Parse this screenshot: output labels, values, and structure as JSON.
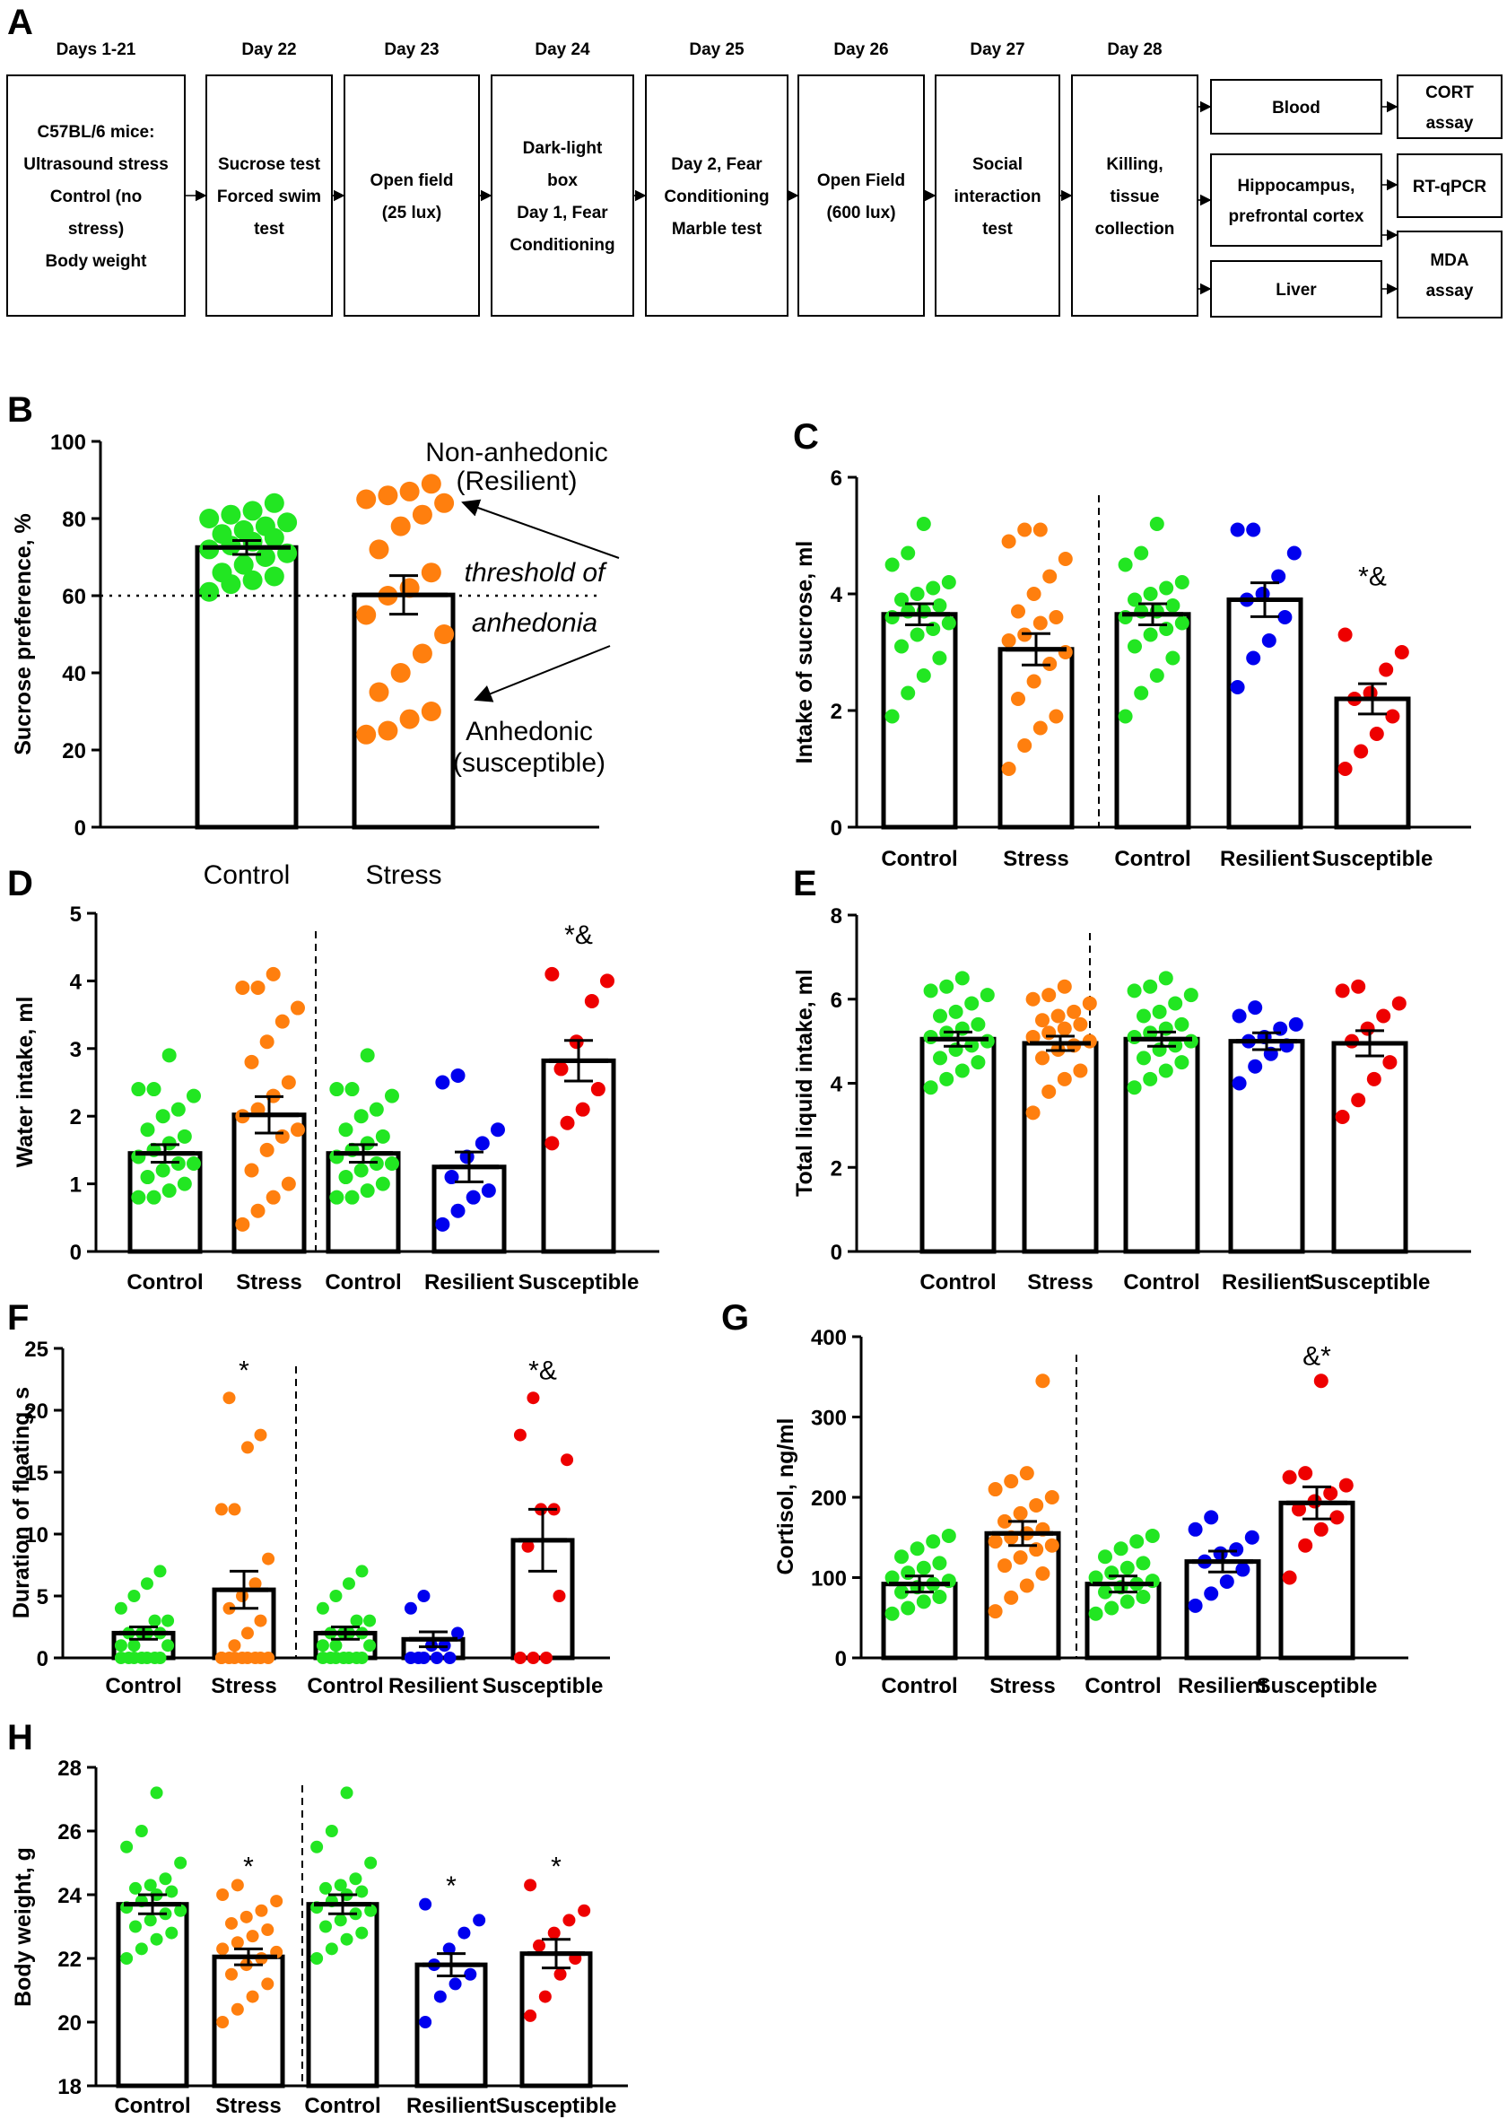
{
  "panel_labels": [
    "A",
    "B",
    "C",
    "D",
    "E",
    "F",
    "G",
    "H"
  ],
  "timeline": {
    "days": [
      "Days 1-21",
      "Day 22",
      "Day 23",
      "Day 24",
      "Day 25",
      "Day 26",
      "Day 27",
      "Day 28"
    ],
    "boxes": [
      [
        "C57BL/6 mice:",
        "Ultrasound stress",
        "Control (no",
        "stress)",
        "Body weight"
      ],
      [
        "Sucrose test",
        "Forced swim",
        "test"
      ],
      [
        "Open field",
        "(25 lux)"
      ],
      [
        "Dark-light",
        "box",
        "Day 1, Fear",
        "Conditioning"
      ],
      [
        "Day 2, Fear",
        "Conditioning",
        "Marble test"
      ],
      [
        "Open Field",
        "(600 lux)"
      ],
      [
        "Social",
        "interaction",
        "test"
      ],
      [
        "Killing,",
        "tissue",
        "collection"
      ]
    ],
    "tissues": [
      [
        "Blood"
      ],
      [
        "Hippocampus,",
        "prefrontal cortex"
      ],
      [
        "Liver"
      ]
    ],
    "assays": [
      [
        "CORT",
        "assay"
      ],
      [
        "RT-qPCR"
      ],
      [
        "MDA",
        "assay"
      ]
    ]
  },
  "colors": {
    "control": "#22e622",
    "stress": "#ff7f0e",
    "resilient": "#0000ee",
    "susceptible": "#ee0000",
    "anhedonic_text": "#b00000",
    "resilient_text": "#0000ff"
  },
  "chart_data": [
    {
      "id": "B",
      "type": "bar",
      "ylabel": "Sucrose preference, %",
      "ylim": [
        0,
        100
      ],
      "yticks": [
        0,
        20,
        40,
        60,
        80,
        100
      ],
      "categories": [
        "Control",
        "Stress"
      ],
      "means": [
        72.5,
        60.2
      ],
      "sems": [
        1.8,
        5.0
      ],
      "threshold": {
        "value": 60,
        "label_top": "threshold of",
        "label_bottom": "anhedonia"
      },
      "labels": {
        "non_anhedonic": [
          "Non-anhedonic",
          "(Resilient)"
        ],
        "anhedonic": [
          "Anhedonic",
          "(susceptible)"
        ]
      },
      "points": [
        [
          61,
          63,
          64,
          65,
          66,
          68,
          70,
          71,
          72,
          73,
          74,
          75,
          76,
          77,
          78,
          79,
          80,
          81,
          82,
          84
        ],
        [
          24,
          25,
          28,
          30,
          35,
          40,
          45,
          50,
          55,
          60,
          62,
          66,
          72,
          78,
          81,
          84,
          85,
          86,
          87,
          89
        ]
      ],
      "colors": [
        "control",
        "stress"
      ]
    },
    {
      "id": "C",
      "type": "bar",
      "ylabel": "Intake of sucrose, ml",
      "ylim": [
        0,
        6
      ],
      "yticks": [
        0,
        2,
        4,
        6
      ],
      "categories": [
        "Control",
        "Stress",
        "Control",
        "Resilient",
        "Susceptible"
      ],
      "means": [
        3.65,
        3.05,
        3.65,
        3.9,
        2.2
      ],
      "sems": [
        0.18,
        0.27,
        0.18,
        0.29,
        0.26
      ],
      "annotations": [
        {
          "category": 4,
          "text": "*&",
          "value": 4.15
        }
      ],
      "points": [
        [
          1.9,
          2.3,
          2.6,
          2.9,
          3.1,
          3.3,
          3.4,
          3.5,
          3.6,
          3.7,
          3.7,
          3.8,
          3.9,
          4.0,
          4.1,
          4.2,
          4.5,
          4.7,
          5.2
        ],
        [
          1.0,
          1.4,
          1.7,
          1.9,
          2.2,
          2.5,
          2.8,
          3.0,
          3.2,
          3.3,
          3.5,
          3.6,
          3.7,
          4.0,
          4.3,
          4.6,
          4.9,
          5.1,
          5.1
        ],
        [
          1.9,
          2.3,
          2.6,
          2.9,
          3.1,
          3.3,
          3.4,
          3.5,
          3.6,
          3.7,
          3.7,
          3.8,
          3.9,
          4.0,
          4.1,
          4.2,
          4.5,
          4.7,
          5.2
        ],
        [
          2.4,
          2.9,
          3.2,
          3.6,
          3.9,
          4.0,
          4.3,
          4.7,
          5.1,
          5.1
        ],
        [
          1.0,
          1.3,
          1.6,
          1.9,
          2.2,
          2.3,
          2.7,
          3.0,
          3.3
        ]
      ],
      "colors": [
        "control",
        "stress",
        "control",
        "resilient",
        "susceptible"
      ]
    },
    {
      "id": "D",
      "type": "bar",
      "ylabel": "Water intake, ml",
      "ylim": [
        0,
        5
      ],
      "yticks": [
        0,
        1,
        2,
        3,
        4,
        5
      ],
      "categories": [
        "Control",
        "Stress",
        "Control",
        "Resilient",
        "Susceptible"
      ],
      "means": [
        1.45,
        2.02,
        1.45,
        1.25,
        2.82
      ],
      "sems": [
        0.13,
        0.27,
        0.13,
        0.22,
        0.3
      ],
      "annotations": [
        {
          "category": 4,
          "text": "*&",
          "value": 4.55
        }
      ],
      "points": [
        [
          0.8,
          0.8,
          0.9,
          1.0,
          1.1,
          1.2,
          1.3,
          1.3,
          1.4,
          1.5,
          1.6,
          1.7,
          1.8,
          2.0,
          2.1,
          2.3,
          2.4,
          2.4,
          2.9
        ],
        [
          0.4,
          0.6,
          0.8,
          1.0,
          1.2,
          1.5,
          1.7,
          1.8,
          2.0,
          2.1,
          2.3,
          2.5,
          2.8,
          3.1,
          3.4,
          3.6,
          3.9,
          3.9,
          4.1
        ],
        [
          0.8,
          0.8,
          0.9,
          1.0,
          1.1,
          1.2,
          1.3,
          1.3,
          1.4,
          1.5,
          1.6,
          1.7,
          1.8,
          2.0,
          2.1,
          2.3,
          2.4,
          2.4,
          2.9
        ],
        [
          0.4,
          0.6,
          0.8,
          0.9,
          1.1,
          1.4,
          1.6,
          1.8,
          2.5,
          2.6
        ],
        [
          1.6,
          1.9,
          2.1,
          2.4,
          2.7,
          3.1,
          3.7,
          4.0,
          4.1
        ]
      ],
      "colors": [
        "control",
        "stress",
        "control",
        "resilient",
        "susceptible"
      ]
    },
    {
      "id": "E",
      "type": "bar",
      "ylabel": "Total liquid intake, ml",
      "ylim": [
        0,
        8
      ],
      "yticks": [
        0,
        2,
        4,
        6,
        8
      ],
      "categories": [
        "Control",
        "Stress",
        "Control",
        "Resilient",
        "Susceptible"
      ],
      "means": [
        5.05,
        4.95,
        5.05,
        5.0,
        4.95
      ],
      "sems": [
        0.17,
        0.17,
        0.17,
        0.2,
        0.3
      ],
      "annotations": [],
      "points": [
        [
          3.9,
          4.1,
          4.3,
          4.5,
          4.6,
          4.8,
          4.9,
          5.0,
          5.1,
          5.2,
          5.3,
          5.4,
          5.6,
          5.7,
          5.9,
          6.1,
          6.2,
          6.3,
          6.5
        ],
        [
          3.3,
          3.8,
          4.1,
          4.3,
          4.6,
          4.8,
          4.9,
          5.0,
          5.1,
          5.2,
          5.3,
          5.4,
          5.5,
          5.6,
          5.7,
          5.9,
          6.0,
          6.1,
          6.3
        ],
        [
          3.9,
          4.1,
          4.3,
          4.5,
          4.6,
          4.8,
          4.9,
          5.0,
          5.1,
          5.2,
          5.3,
          5.4,
          5.6,
          5.7,
          5.9,
          6.1,
          6.2,
          6.3,
          6.5
        ],
        [
          4.0,
          4.4,
          4.7,
          4.9,
          5.0,
          5.1,
          5.3,
          5.4,
          5.6,
          5.8
        ],
        [
          3.2,
          3.6,
          4.1,
          4.5,
          5.0,
          5.3,
          5.6,
          5.9,
          6.2,
          6.3
        ]
      ],
      "colors": [
        "control",
        "stress",
        "control",
        "resilient",
        "susceptible"
      ]
    },
    {
      "id": "F",
      "type": "bar",
      "ylabel": "Duration of floating, s",
      "ylim": [
        0,
        25
      ],
      "yticks": [
        0,
        5,
        10,
        15,
        20,
        25
      ],
      "categories": [
        "Control",
        "Stress",
        "Control",
        "Resilient",
        "Susceptible"
      ],
      "means": [
        2.0,
        5.5,
        2.0,
        1.5,
        9.5
      ],
      "sems": [
        0.5,
        1.5,
        0.5,
        0.6,
        2.5
      ],
      "annotations": [
        {
          "category": 1,
          "text": "*",
          "value": 22.5
        },
        {
          "category": 4,
          "text": "*&",
          "value": 22.5
        }
      ],
      "points": [
        [
          0,
          0,
          0,
          0,
          0,
          0,
          0,
          1,
          1,
          1,
          2,
          2,
          2,
          2,
          3,
          3,
          4,
          5,
          6,
          7
        ],
        [
          0,
          0,
          0,
          0,
          0,
          0,
          0,
          0,
          0,
          1,
          2,
          3,
          4,
          5,
          6,
          8,
          12,
          12,
          17,
          18,
          21
        ],
        [
          0,
          0,
          0,
          0,
          0,
          0,
          0,
          1,
          1,
          1,
          2,
          2,
          2,
          2,
          3,
          3,
          4,
          5,
          6,
          7
        ],
        [
          0,
          0,
          0,
          0,
          0,
          1,
          1,
          2,
          4,
          5
        ],
        [
          0,
          0,
          0,
          5,
          9,
          12,
          12,
          16,
          18,
          21
        ]
      ],
      "colors": [
        "control",
        "stress",
        "control",
        "resilient",
        "susceptible"
      ]
    },
    {
      "id": "G",
      "type": "bar",
      "ylabel": "Cortisol, ng/ml",
      "ylim": [
        0,
        400
      ],
      "yticks": [
        0,
        100,
        200,
        300,
        400
      ],
      "categories": [
        "Control",
        "Stress",
        "Control",
        "Resilient",
        "Susceptible"
      ],
      "means": [
        92,
        155,
        92,
        120,
        193
      ],
      "sems": [
        10,
        15,
        10,
        13,
        20
      ],
      "annotations": [
        {
          "category": 4,
          "text": "&*",
          "value": 365
        }
      ],
      "points": [
        [
          55,
          62,
          70,
          76,
          82,
          88,
          92,
          96,
          100,
          106,
          112,
          118,
          126,
          136,
          145,
          152
        ],
        [
          58,
          75,
          90,
          105,
          115,
          125,
          135,
          140,
          145,
          150,
          155,
          160,
          170,
          180,
          190,
          200,
          210,
          220,
          230,
          345
        ],
        [
          55,
          62,
          70,
          76,
          82,
          88,
          92,
          96,
          100,
          106,
          112,
          118,
          126,
          136,
          145,
          152
        ],
        [
          65,
          80,
          95,
          110,
          120,
          130,
          135,
          150,
          160,
          175
        ],
        [
          100,
          140,
          160,
          175,
          185,
          195,
          205,
          215,
          225,
          230,
          345
        ]
      ],
      "colors": [
        "control",
        "stress",
        "control",
        "resilient",
        "susceptible"
      ]
    },
    {
      "id": "H",
      "type": "bar",
      "ylabel": "Body weight, g",
      "ylim": [
        18,
        28
      ],
      "yticks": [
        18,
        20,
        22,
        24,
        26,
        28
      ],
      "categories": [
        "Control",
        "Stress",
        "Control",
        "Resilient",
        "Susceptible"
      ],
      "means": [
        23.7,
        22.05,
        23.7,
        21.8,
        22.15
      ],
      "sems": [
        0.3,
        0.25,
        0.3,
        0.35,
        0.45
      ],
      "annotations": [
        {
          "category": 1,
          "text": "*",
          "value": 24.6
        },
        {
          "category": 3,
          "text": "*",
          "value": 24.0
        },
        {
          "category": 4,
          "text": "*",
          "value": 24.6
        }
      ],
      "points": [
        [
          22.0,
          22.3,
          22.6,
          22.8,
          23.0,
          23.2,
          23.4,
          23.5,
          23.6,
          23.8,
          24.0,
          24.1,
          24.2,
          24.3,
          24.5,
          25.0,
          25.5,
          26.0,
          27.2
        ],
        [
          20.0,
          20.4,
          20.8,
          21.2,
          21.5,
          21.8,
          22.0,
          22.2,
          22.3,
          22.5,
          22.7,
          22.9,
          23.1,
          23.3,
          23.5,
          23.8,
          24.0,
          24.3
        ],
        [
          22.0,
          22.3,
          22.6,
          22.8,
          23.0,
          23.2,
          23.4,
          23.5,
          23.6,
          23.8,
          24.0,
          24.1,
          24.2,
          24.3,
          24.5,
          25.0,
          25.5,
          26.0,
          27.2
        ],
        [
          20.0,
          20.8,
          21.2,
          21.5,
          21.8,
          22.3,
          22.8,
          23.2,
          23.7
        ],
        [
          20.2,
          20.8,
          21.5,
          22.0,
          22.4,
          22.8,
          23.2,
          23.5,
          24.3
        ]
      ],
      "colors": [
        "control",
        "stress",
        "control",
        "resilient",
        "susceptible"
      ]
    }
  ]
}
